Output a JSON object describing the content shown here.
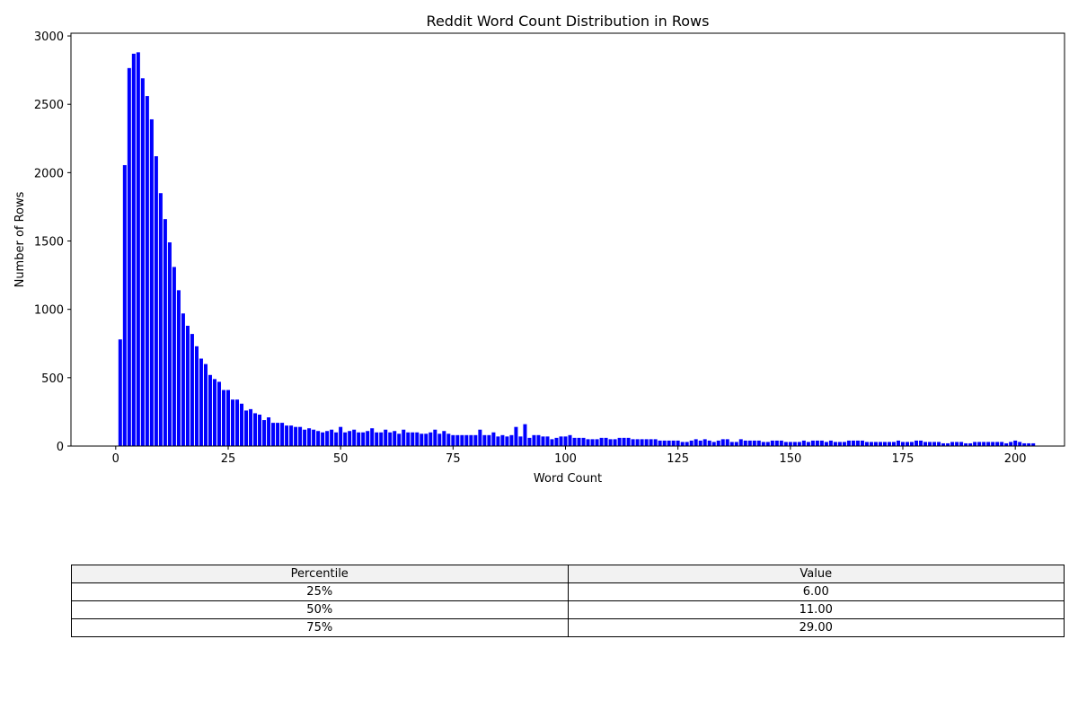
{
  "chart_data": {
    "type": "bar",
    "title": "Reddit Word Count Distribution in Rows",
    "xlabel": "Word Count",
    "ylabel": "Number of Rows",
    "xlim": [
      -9.95,
      210.95
    ],
    "ylim": [
      0,
      3020
    ],
    "xticks": [
      0,
      25,
      50,
      75,
      100,
      125,
      150,
      175,
      200
    ],
    "yticks": [
      0,
      500,
      1000,
      1500,
      2000,
      2500,
      3000
    ],
    "bar_color": "#0000ff",
    "grid": false,
    "x_start": 1,
    "values": [
      780,
      2055,
      2765,
      2870,
      2880,
      2690,
      2560,
      2390,
      2120,
      1850,
      1660,
      1490,
      1310,
      1140,
      970,
      880,
      820,
      730,
      640,
      600,
      520,
      490,
      470,
      410,
      410,
      340,
      340,
      310,
      260,
      270,
      240,
      230,
      190,
      210,
      170,
      170,
      170,
      150,
      150,
      140,
      140,
      120,
      130,
      120,
      110,
      100,
      110,
      120,
      100,
      140,
      100,
      110,
      120,
      100,
      100,
      110,
      130,
      100,
      100,
      120,
      100,
      110,
      90,
      120,
      100,
      100,
      100,
      90,
      90,
      100,
      120,
      90,
      110,
      90,
      80,
      80,
      80,
      80,
      80,
      80,
      120,
      80,
      80,
      100,
      70,
      80,
      70,
      80,
      140,
      70,
      160,
      60,
      80,
      80,
      70,
      70,
      50,
      60,
      70,
      70,
      80,
      60,
      60,
      60,
      50,
      50,
      50,
      60,
      60,
      50,
      50,
      60,
      60,
      60,
      50,
      50,
      50,
      50,
      50,
      50,
      40,
      40,
      40,
      40,
      40,
      30,
      30,
      40,
      50,
      40,
      50,
      40,
      30,
      40,
      50,
      50,
      30,
      30,
      50,
      40,
      40,
      40,
      40,
      30,
      30,
      40,
      40,
      40,
      30,
      30,
      30,
      30,
      40,
      30,
      40,
      40,
      40,
      30,
      40,
      30,
      30,
      30,
      40,
      40,
      40,
      40,
      30,
      30,
      30,
      30,
      30,
      30,
      30,
      40,
      30,
      30,
      30,
      40,
      40,
      30,
      30,
      30,
      30,
      20,
      20,
      30,
      30,
      30,
      20,
      20,
      30,
      30,
      30,
      30,
      30,
      30,
      30,
      20,
      30,
      40,
      30,
      20,
      20,
      20
    ]
  },
  "table": {
    "headers": [
      "Percentile",
      "Value"
    ],
    "rows": [
      [
        "25%",
        "6.00"
      ],
      [
        "50%",
        "11.00"
      ],
      [
        "75%",
        "29.00"
      ]
    ]
  }
}
